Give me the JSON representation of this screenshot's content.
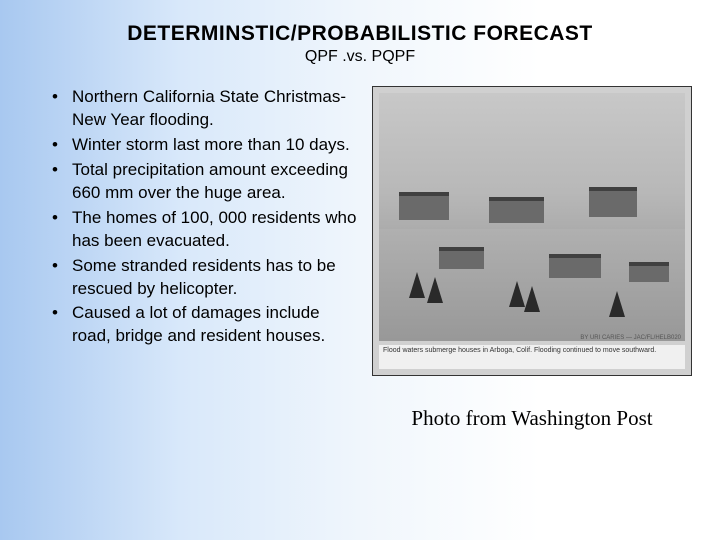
{
  "title": "DETERMINSTIC/PROBABILISTIC  FORECAST",
  "subtitle": "QPF .vs. PQPF",
  "bullets": [
    "Northern California State Christmas-New Year flooding.",
    "Winter storm last more than 10 days.",
    "Total precipitation amount exceeding 660 mm over the huge area.",
    "The homes of 100, 000 residents who has been evacuated.",
    "Some stranded residents has to be rescued by helicopter.",
    "Caused a lot of damages include road, bridge and resident houses."
  ],
  "photo_caption": "Flood waters submerge houses in Arboga, Colif. Flooding continued to move southward.",
  "photo_byline": "BY URI CARIES — JAC/FL/HELB020",
  "credit": "Photo from Washington Post",
  "colors": {
    "title": "#000000",
    "text": "#000000",
    "bg_gradient_start": "#a8c8f0",
    "bg_gradient_end": "#ffffff"
  }
}
